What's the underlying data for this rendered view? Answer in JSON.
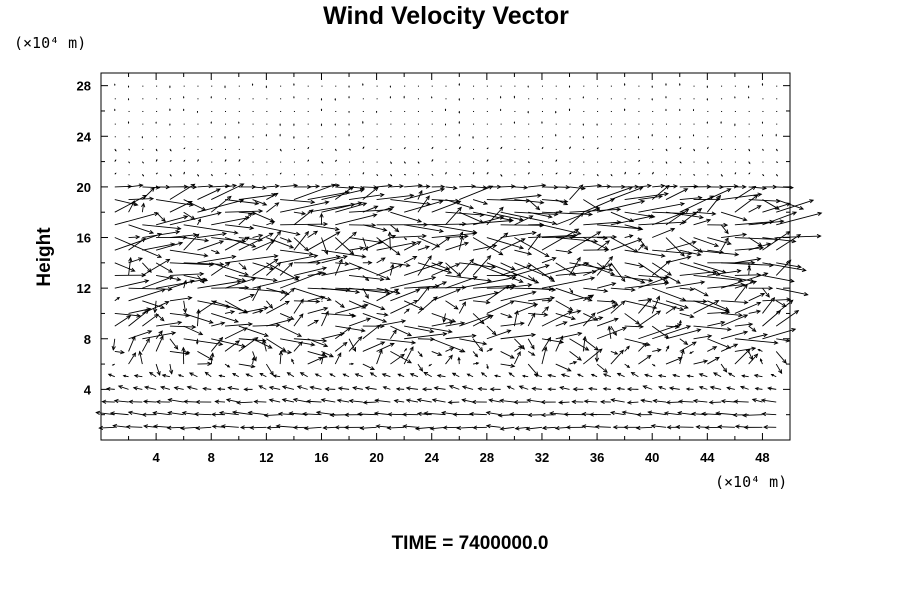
{
  "chart_data": {
    "type": "vector-field",
    "title": "Wind Velocity Vector",
    "ylabel": "Height",
    "y_unit": "(×10⁴ m)",
    "x_unit": "(×10⁴ m)",
    "xlim": [
      0,
      50
    ],
    "ylim": [
      0,
      29
    ],
    "x_ticks": [
      4,
      8,
      12,
      16,
      20,
      24,
      28,
      32,
      36,
      40,
      44,
      48
    ],
    "y_ticks": [
      4,
      8,
      12,
      16,
      20,
      24,
      28
    ],
    "grid": false,
    "footer": "TIME = 7400000.0",
    "layers": [
      {
        "y": 1.0,
        "u": -1.6,
        "v": 0.0
      },
      {
        "y": 2.0,
        "u": -1.9,
        "v": 0.1
      },
      {
        "y": 3.0,
        "u": -1.4,
        "v": 0.1
      },
      {
        "y": 4.0,
        "u": -1.0,
        "v": 0.2
      },
      {
        "y": 5.0,
        "u": -0.7,
        "v": 0.3
      },
      {
        "y": 6.0,
        "u": 0.6,
        "v": 0.3
      },
      {
        "y": 7.0,
        "u": 1.0,
        "v": 0.3
      },
      {
        "y": 8.0,
        "u": 2.2,
        "v": 0.1
      },
      {
        "y": 9.0,
        "u": 2.0,
        "v": 0.3
      },
      {
        "y": 10.0,
        "u": 1.7,
        "v": 0.4
      },
      {
        "y": 11.0,
        "u": 2.0,
        "v": 0.2
      },
      {
        "y": 12.0,
        "u": 3.0,
        "v": 0.2
      },
      {
        "y": 13.0,
        "u": 2.6,
        "v": 0.6
      },
      {
        "y": 14.0,
        "u": 2.8,
        "v": -0.7
      },
      {
        "y": 15.0,
        "u": 2.4,
        "v": 0.8
      },
      {
        "y": 16.0,
        "u": 2.6,
        "v": -0.6
      },
      {
        "y": 17.0,
        "u": 2.9,
        "v": 0.5
      },
      {
        "y": 18.0,
        "u": 2.8,
        "v": 0.3
      },
      {
        "y": 19.0,
        "u": 2.5,
        "v": 0.2
      },
      {
        "y": 20.0,
        "u": 1.6,
        "v": 0.0
      },
      {
        "y": 21.0,
        "u": 0.1,
        "v": 0.0
      },
      {
        "y": 22.0,
        "u": 0.1,
        "v": 0.0
      },
      {
        "y": 23.0,
        "u": 0.1,
        "v": 0.0
      },
      {
        "y": 24.0,
        "u": 0.0,
        "v": 0.0
      },
      {
        "y": 25.0,
        "u": 0.0,
        "v": 0.0
      },
      {
        "y": 26.0,
        "u": 0.0,
        "v": 0.0
      },
      {
        "y": 27.0,
        "u": 0.0,
        "v": 0.0
      },
      {
        "y": 28.0,
        "u": 0.0,
        "v": 0.0
      }
    ],
    "x_spacing": 1.0
  }
}
